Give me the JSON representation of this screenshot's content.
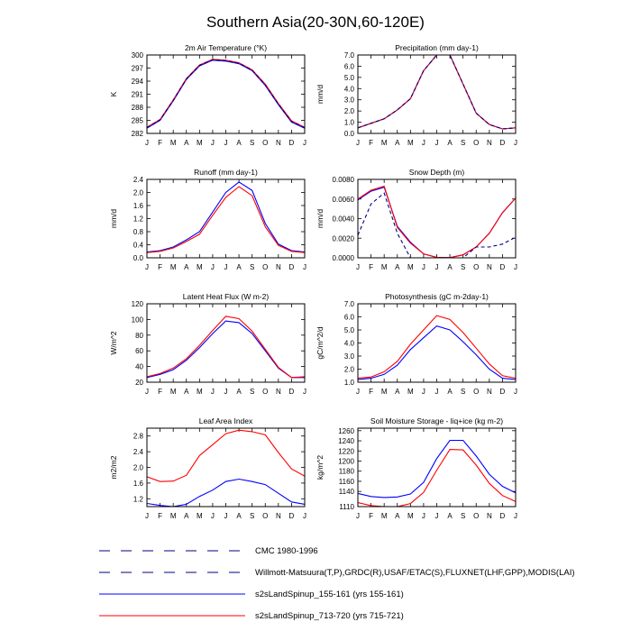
{
  "title": "Southern Asia(20-30N,60-120E)",
  "colors": {
    "blue": "#0000ff",
    "red": "#ff0000",
    "dashed_navy": "#000080",
    "axis": "#000000"
  },
  "months": [
    "J",
    "F",
    "M",
    "A",
    "M",
    "J",
    "J",
    "A",
    "S",
    "O",
    "N",
    "D",
    "J"
  ],
  "legend": [
    {
      "label": "CMC 1980-1996",
      "style": "dashed",
      "color": "#000080"
    },
    {
      "label": "Willmott-Matsuura(T,P),GRDC(R),USAF/ETAC(S),FLUXNET(LHF,GPP),MODIS(LAI)",
      "style": "dashed",
      "color": "#000080"
    },
    {
      "label": "s2sLandSpinup_155-161 (yrs 155-161)",
      "style": "solid",
      "color": "#0000ff"
    },
    {
      "label": "s2sLandSpinup_713-720 (yrs 715-721)",
      "style": "solid",
      "color": "#ff0000"
    }
  ],
  "chart_data": [
    {
      "type": "line",
      "title": "2m Air Temperature (°K)",
      "ylabel": "K",
      "ylim": [
        282,
        300
      ],
      "yticks": [
        "282",
        "285",
        "288",
        "291",
        "294",
        "297",
        "300"
      ],
      "ytick_values": [
        282,
        285,
        288,
        291,
        294,
        297,
        300
      ],
      "series": [
        {
          "color": "#0000ff",
          "style": "solid",
          "values": [
            283.2,
            285.0,
            289.5,
            294.4,
            297.5,
            298.8,
            298.6,
            298.0,
            296.4,
            293.0,
            288.6,
            284.6,
            283.2
          ]
        },
        {
          "color": "#ff0000",
          "style": "solid",
          "values": [
            283.4,
            285.2,
            289.7,
            294.6,
            297.7,
            299.0,
            298.8,
            298.2,
            296.6,
            293.3,
            288.9,
            284.9,
            283.4
          ]
        },
        {
          "color": "#000080",
          "style": "dashed",
          "values": [
            283.3,
            285.1,
            289.6,
            294.5,
            297.6,
            298.9,
            298.7,
            298.1,
            296.5,
            293.1,
            288.7,
            284.7,
            283.3
          ]
        }
      ]
    },
    {
      "type": "line",
      "title": "Precipitation (mm day-1)",
      "ylabel": "mm/d",
      "ylim": [
        0,
        7
      ],
      "yticks": [
        "0.0",
        "1.0",
        "2.0",
        "3.0",
        "4.0",
        "5.0",
        "6.0",
        "7.0"
      ],
      "ytick_values": [
        0,
        1,
        2,
        3,
        4,
        5,
        6,
        7
      ],
      "series": [
        {
          "color": "#0000ff",
          "style": "solid",
          "values": [
            0.5,
            0.9,
            1.3,
            2.1,
            3.1,
            5.6,
            7.0,
            7.0,
            4.4,
            1.8,
            0.8,
            0.4,
            0.5
          ]
        },
        {
          "color": "#ff0000",
          "style": "solid",
          "values": [
            0.5,
            0.9,
            1.3,
            2.1,
            3.1,
            5.6,
            7.0,
            7.0,
            4.4,
            1.8,
            0.8,
            0.4,
            0.5
          ]
        },
        {
          "color": "#000080",
          "style": "dashed",
          "values": [
            0.5,
            0.9,
            1.3,
            2.1,
            3.1,
            5.6,
            7.0,
            7.0,
            4.4,
            1.8,
            0.8,
            0.4,
            0.5
          ]
        }
      ]
    },
    {
      "type": "line",
      "title": "Runoff (mm day-1)",
      "ylabel": "mm/d",
      "ylim": [
        0,
        2.4
      ],
      "yticks": [
        "0.0",
        "0.4",
        "0.8",
        "1.2",
        "1.6",
        "2.0",
        "2.4"
      ],
      "ytick_values": [
        0,
        0.4,
        0.8,
        1.2,
        1.6,
        2.0,
        2.4
      ],
      "series": [
        {
          "color": "#0000ff",
          "style": "solid",
          "values": [
            0.18,
            0.22,
            0.33,
            0.55,
            0.8,
            1.4,
            2.0,
            2.32,
            2.06,
            1.05,
            0.42,
            0.22,
            0.18
          ]
        },
        {
          "color": "#ff0000",
          "style": "solid",
          "values": [
            0.16,
            0.2,
            0.3,
            0.5,
            0.72,
            1.3,
            1.85,
            2.18,
            1.9,
            0.95,
            0.38,
            0.2,
            0.16
          ]
        }
      ]
    },
    {
      "type": "line",
      "title": "Snow Depth (m)",
      "ylabel": "mm/d",
      "ylim": [
        0,
        0.008
      ],
      "yticks": [
        "0.0000",
        "0.0020",
        "0.0040",
        "0.0060",
        "0.0080"
      ],
      "ytick_values": [
        0,
        0.002,
        0.004,
        0.006,
        0.008
      ],
      "series": [
        {
          "color": "#0000ff",
          "style": "solid",
          "values": [
            0.0059,
            0.0068,
            0.0072,
            0.0032,
            0.0016,
            0.0004,
            5e-05,
            2e-05,
            0.0003,
            0.0011,
            0.0025,
            0.0046,
            0.0061
          ]
        },
        {
          "color": "#ff0000",
          "style": "solid",
          "values": [
            0.006,
            0.0069,
            0.0073,
            0.0031,
            0.0015,
            0.0004,
            5e-05,
            2e-05,
            0.0003,
            0.0011,
            0.0025,
            0.0046,
            0.0061
          ]
        },
        {
          "color": "#000080",
          "style": "dashed",
          "values": [
            0.0023,
            0.0055,
            0.0066,
            0.0025,
            0.0,
            0.0,
            0.0,
            0.0,
            0.0,
            0.0011,
            0.0011,
            0.0014,
            0.0021
          ]
        }
      ]
    },
    {
      "type": "line",
      "title": "Latent Heat Flux (W m-2)",
      "ylabel": "W/m^2",
      "ylim": [
        20,
        120
      ],
      "yticks": [
        "20",
        "40",
        "60",
        "80",
        "100",
        "120"
      ],
      "ytick_values": [
        20,
        40,
        60,
        80,
        100,
        120
      ],
      "series": [
        {
          "color": "#0000ff",
          "style": "solid",
          "values": [
            26,
            30,
            36,
            48,
            64,
            82,
            98,
            96,
            82,
            60,
            38,
            26,
            26
          ]
        },
        {
          "color": "#ff0000",
          "style": "solid",
          "values": [
            27,
            31,
            38,
            50,
            67,
            86,
            104,
            101,
            85,
            62,
            39,
            26,
            27
          ]
        }
      ]
    },
    {
      "type": "line",
      "title": "Photosynthesis (gC m-2day-1)",
      "ylabel": "gC/m^2/d",
      "ylim": [
        1,
        7
      ],
      "yticks": [
        "1.0",
        "2.0",
        "3.0",
        "4.0",
        "5.0",
        "6.0",
        "7.0"
      ],
      "ytick_values": [
        1,
        2,
        3,
        4,
        5,
        6,
        7
      ],
      "series": [
        {
          "color": "#0000ff",
          "style": "solid",
          "values": [
            1.2,
            1.3,
            1.6,
            2.3,
            3.5,
            4.4,
            5.3,
            5.0,
            4.1,
            3.1,
            2.0,
            1.3,
            1.2
          ]
        },
        {
          "color": "#ff0000",
          "style": "solid",
          "values": [
            1.3,
            1.4,
            1.8,
            2.6,
            3.9,
            5.0,
            6.1,
            5.8,
            4.8,
            3.6,
            2.4,
            1.5,
            1.3
          ]
        }
      ]
    },
    {
      "type": "line",
      "title": "Leaf Area Index",
      "ylabel": "m2/m2",
      "ylim": [
        1.0,
        3.0
      ],
      "yticks": [
        "1.2",
        "1.6",
        "2.0",
        "2.4",
        "2.8"
      ],
      "ytick_values": [
        1.2,
        1.6,
        2.0,
        2.4,
        2.8
      ],
      "series": [
        {
          "color": "#0000ff",
          "style": "solid",
          "values": [
            1.08,
            1.03,
            1.0,
            1.06,
            1.26,
            1.42,
            1.64,
            1.7,
            1.64,
            1.56,
            1.34,
            1.12,
            1.06
          ]
        },
        {
          "color": "#ff0000",
          "style": "solid",
          "values": [
            1.76,
            1.64,
            1.65,
            1.8,
            2.3,
            2.58,
            2.86,
            2.95,
            2.91,
            2.83,
            2.38,
            1.96,
            1.78
          ]
        }
      ]
    },
    {
      "type": "line",
      "title": "Soil Moisture Storage - liq+ice (kg m-2)",
      "ylabel": "kg/m^2",
      "ylim": [
        1110,
        1265
      ],
      "yticks": [
        "1110",
        "1140",
        "1160",
        "1180",
        "1200",
        "1220",
        "1240",
        "1260"
      ],
      "ytick_values": [
        1110,
        1140,
        1160,
        1180,
        1200,
        1220,
        1240,
        1260
      ],
      "series": [
        {
          "color": "#0000ff",
          "style": "solid",
          "values": [
            1136,
            1130,
            1128,
            1129,
            1135,
            1158,
            1205,
            1241,
            1241,
            1210,
            1174,
            1150,
            1137
          ]
        },
        {
          "color": "#ff0000",
          "style": "solid",
          "values": [
            1118,
            1112,
            1110,
            1110,
            1116,
            1138,
            1182,
            1223,
            1222,
            1192,
            1156,
            1132,
            1120
          ]
        }
      ]
    }
  ]
}
